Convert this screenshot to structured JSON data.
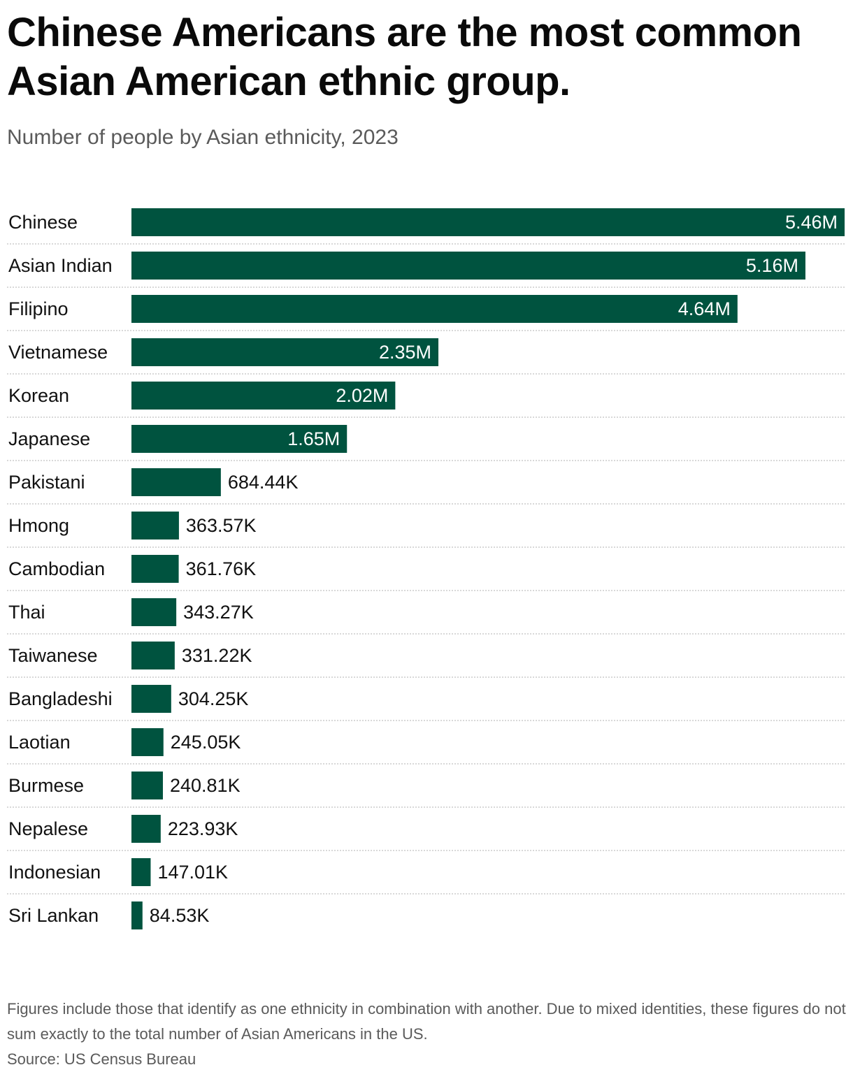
{
  "chart_data": {
    "type": "bar",
    "orientation": "horizontal",
    "title": "Chinese Americans are the most common Asian American ethnic group.",
    "subtitle": "Number of people by Asian ethnicity, 2023",
    "xlabel": "",
    "ylabel": "",
    "xlim": [
      0,
      5460000
    ],
    "grid": false,
    "categories": [
      "Chinese",
      "Asian Indian",
      "Filipino",
      "Vietnamese",
      "Korean",
      "Japanese",
      "Pakistani",
      "Hmong",
      "Cambodian",
      "Thai",
      "Taiwanese",
      "Bangladeshi",
      "Laotian",
      "Burmese",
      "Nepalese",
      "Indonesian",
      "Sri Lankan"
    ],
    "values": [
      5460000,
      5160000,
      4640000,
      2350000,
      2020000,
      1650000,
      684440,
      363570,
      361760,
      343270,
      331220,
      304250,
      245050,
      240810,
      223930,
      147010,
      84530
    ],
    "value_labels": [
      "5.46M",
      "5.16M",
      "4.64M",
      "2.35M",
      "2.02M",
      "1.65M",
      "684.44K",
      "363.57K",
      "361.76K",
      "343.27K",
      "331.22K",
      "304.25K",
      "245.05K",
      "240.81K",
      "223.93K",
      "147.01K",
      "84.53K"
    ],
    "bar_color": "#00533f",
    "inside_label_color": "#ffffff",
    "outside_label_color": "#111111",
    "separator_color": "#cccccc"
  },
  "footnote": "Figures include those that identify as one ethnicity in combination with another. Due to mixed identities, these figures do not sum exactly to the total number of Asian Americans in the US.",
  "source": "Source: US Census Bureau"
}
